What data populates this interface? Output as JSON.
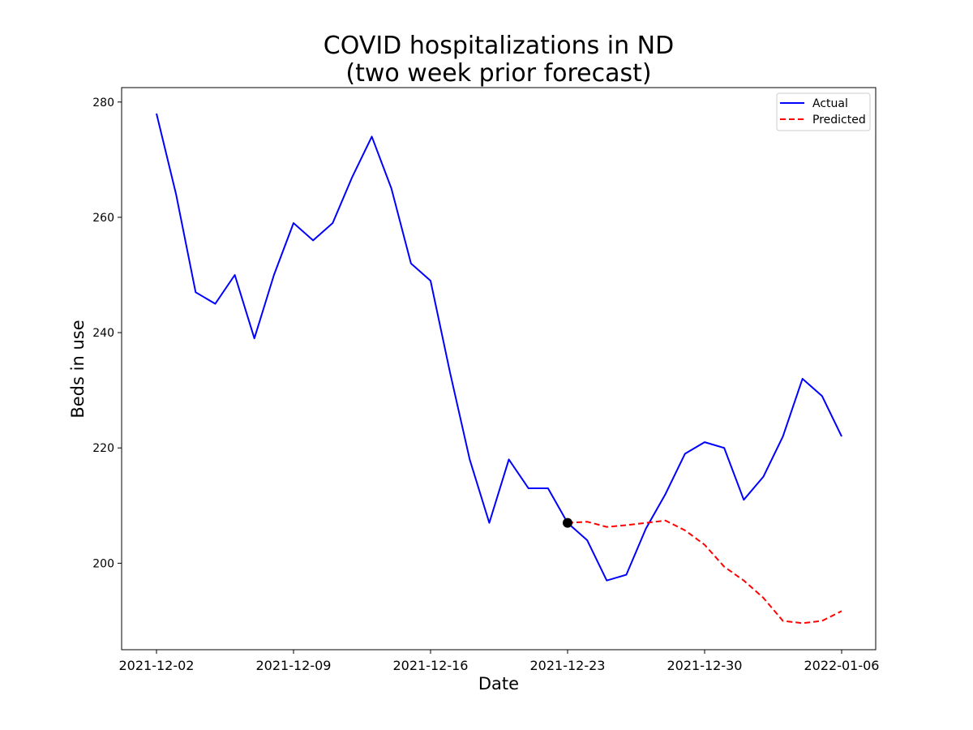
{
  "chart_data": {
    "type": "line",
    "title_line1": "COVID hospitalizations in ND",
    "title_line2": "(two week prior forecast)",
    "xlabel": "Date",
    "ylabel": "Beds in use",
    "x_tick_labels": [
      "2021-12-02",
      "2021-12-09",
      "2021-12-16",
      "2021-12-23",
      "2021-12-30",
      "2022-01-06"
    ],
    "y_ticks": [
      200,
      220,
      240,
      260,
      280
    ],
    "x_range": [
      "2021-12-02",
      "2022-01-06"
    ],
    "ylim": [
      185,
      282.5
    ],
    "grid": false,
    "legend_position": "top-right",
    "series": [
      {
        "name": "Actual",
        "color": "#0000ff",
        "style": "solid",
        "points": [
          [
            "2021-12-02",
            278
          ],
          [
            "2021-12-03",
            264
          ],
          [
            "2021-12-04",
            247
          ],
          [
            "2021-12-05",
            245
          ],
          [
            "2021-12-06",
            250
          ],
          [
            "2021-12-07",
            239
          ],
          [
            "2021-12-08",
            250
          ],
          [
            "2021-12-09",
            259
          ],
          [
            "2021-12-10",
            256
          ],
          [
            "2021-12-11",
            259
          ],
          [
            "2021-12-12",
            267
          ],
          [
            "2021-12-13",
            274
          ],
          [
            "2021-12-14",
            265
          ],
          [
            "2021-12-15",
            252
          ],
          [
            "2021-12-16",
            249
          ],
          [
            "2021-12-17",
            233
          ],
          [
            "2021-12-18",
            218
          ],
          [
            "2021-12-19",
            207
          ],
          [
            "2021-12-20",
            218
          ],
          [
            "2021-12-21",
            213
          ],
          [
            "2021-12-22",
            213
          ],
          [
            "2021-12-23",
            207
          ],
          [
            "2021-12-24",
            204
          ],
          [
            "2021-12-25",
            197
          ],
          [
            "2021-12-26",
            198
          ],
          [
            "2021-12-27",
            206
          ],
          [
            "2021-12-28",
            212
          ],
          [
            "2021-12-29",
            219
          ],
          [
            "2021-12-30",
            221
          ],
          [
            "2021-12-31",
            220
          ],
          [
            "2022-01-01",
            211
          ],
          [
            "2022-01-02",
            215
          ],
          [
            "2022-01-03",
            222
          ],
          [
            "2022-01-04",
            232
          ],
          [
            "2022-01-05",
            229
          ],
          [
            "2022-01-06",
            222
          ]
        ]
      },
      {
        "name": "Predicted",
        "color": "#ff0000",
        "style": "dashed",
        "points": [
          [
            "2021-12-23",
            207
          ],
          [
            "2021-12-24",
            207.2
          ],
          [
            "2021-12-25",
            206.3
          ],
          [
            "2021-12-26",
            206.6
          ],
          [
            "2021-12-27",
            207
          ],
          [
            "2021-12-28",
            207.4
          ],
          [
            "2021-12-29",
            205.7
          ],
          [
            "2021-12-30",
            203.2
          ],
          [
            "2021-12-31",
            199.4
          ],
          [
            "2022-01-01",
            197
          ],
          [
            "2022-01-02",
            194
          ],
          [
            "2022-01-03",
            190
          ],
          [
            "2022-01-04",
            189.6
          ],
          [
            "2022-01-05",
            190
          ],
          [
            "2022-01-06",
            191.7
          ]
        ]
      }
    ],
    "forecast_origin": {
      "date": "2021-12-23",
      "value": 207,
      "color": "#000000"
    }
  }
}
